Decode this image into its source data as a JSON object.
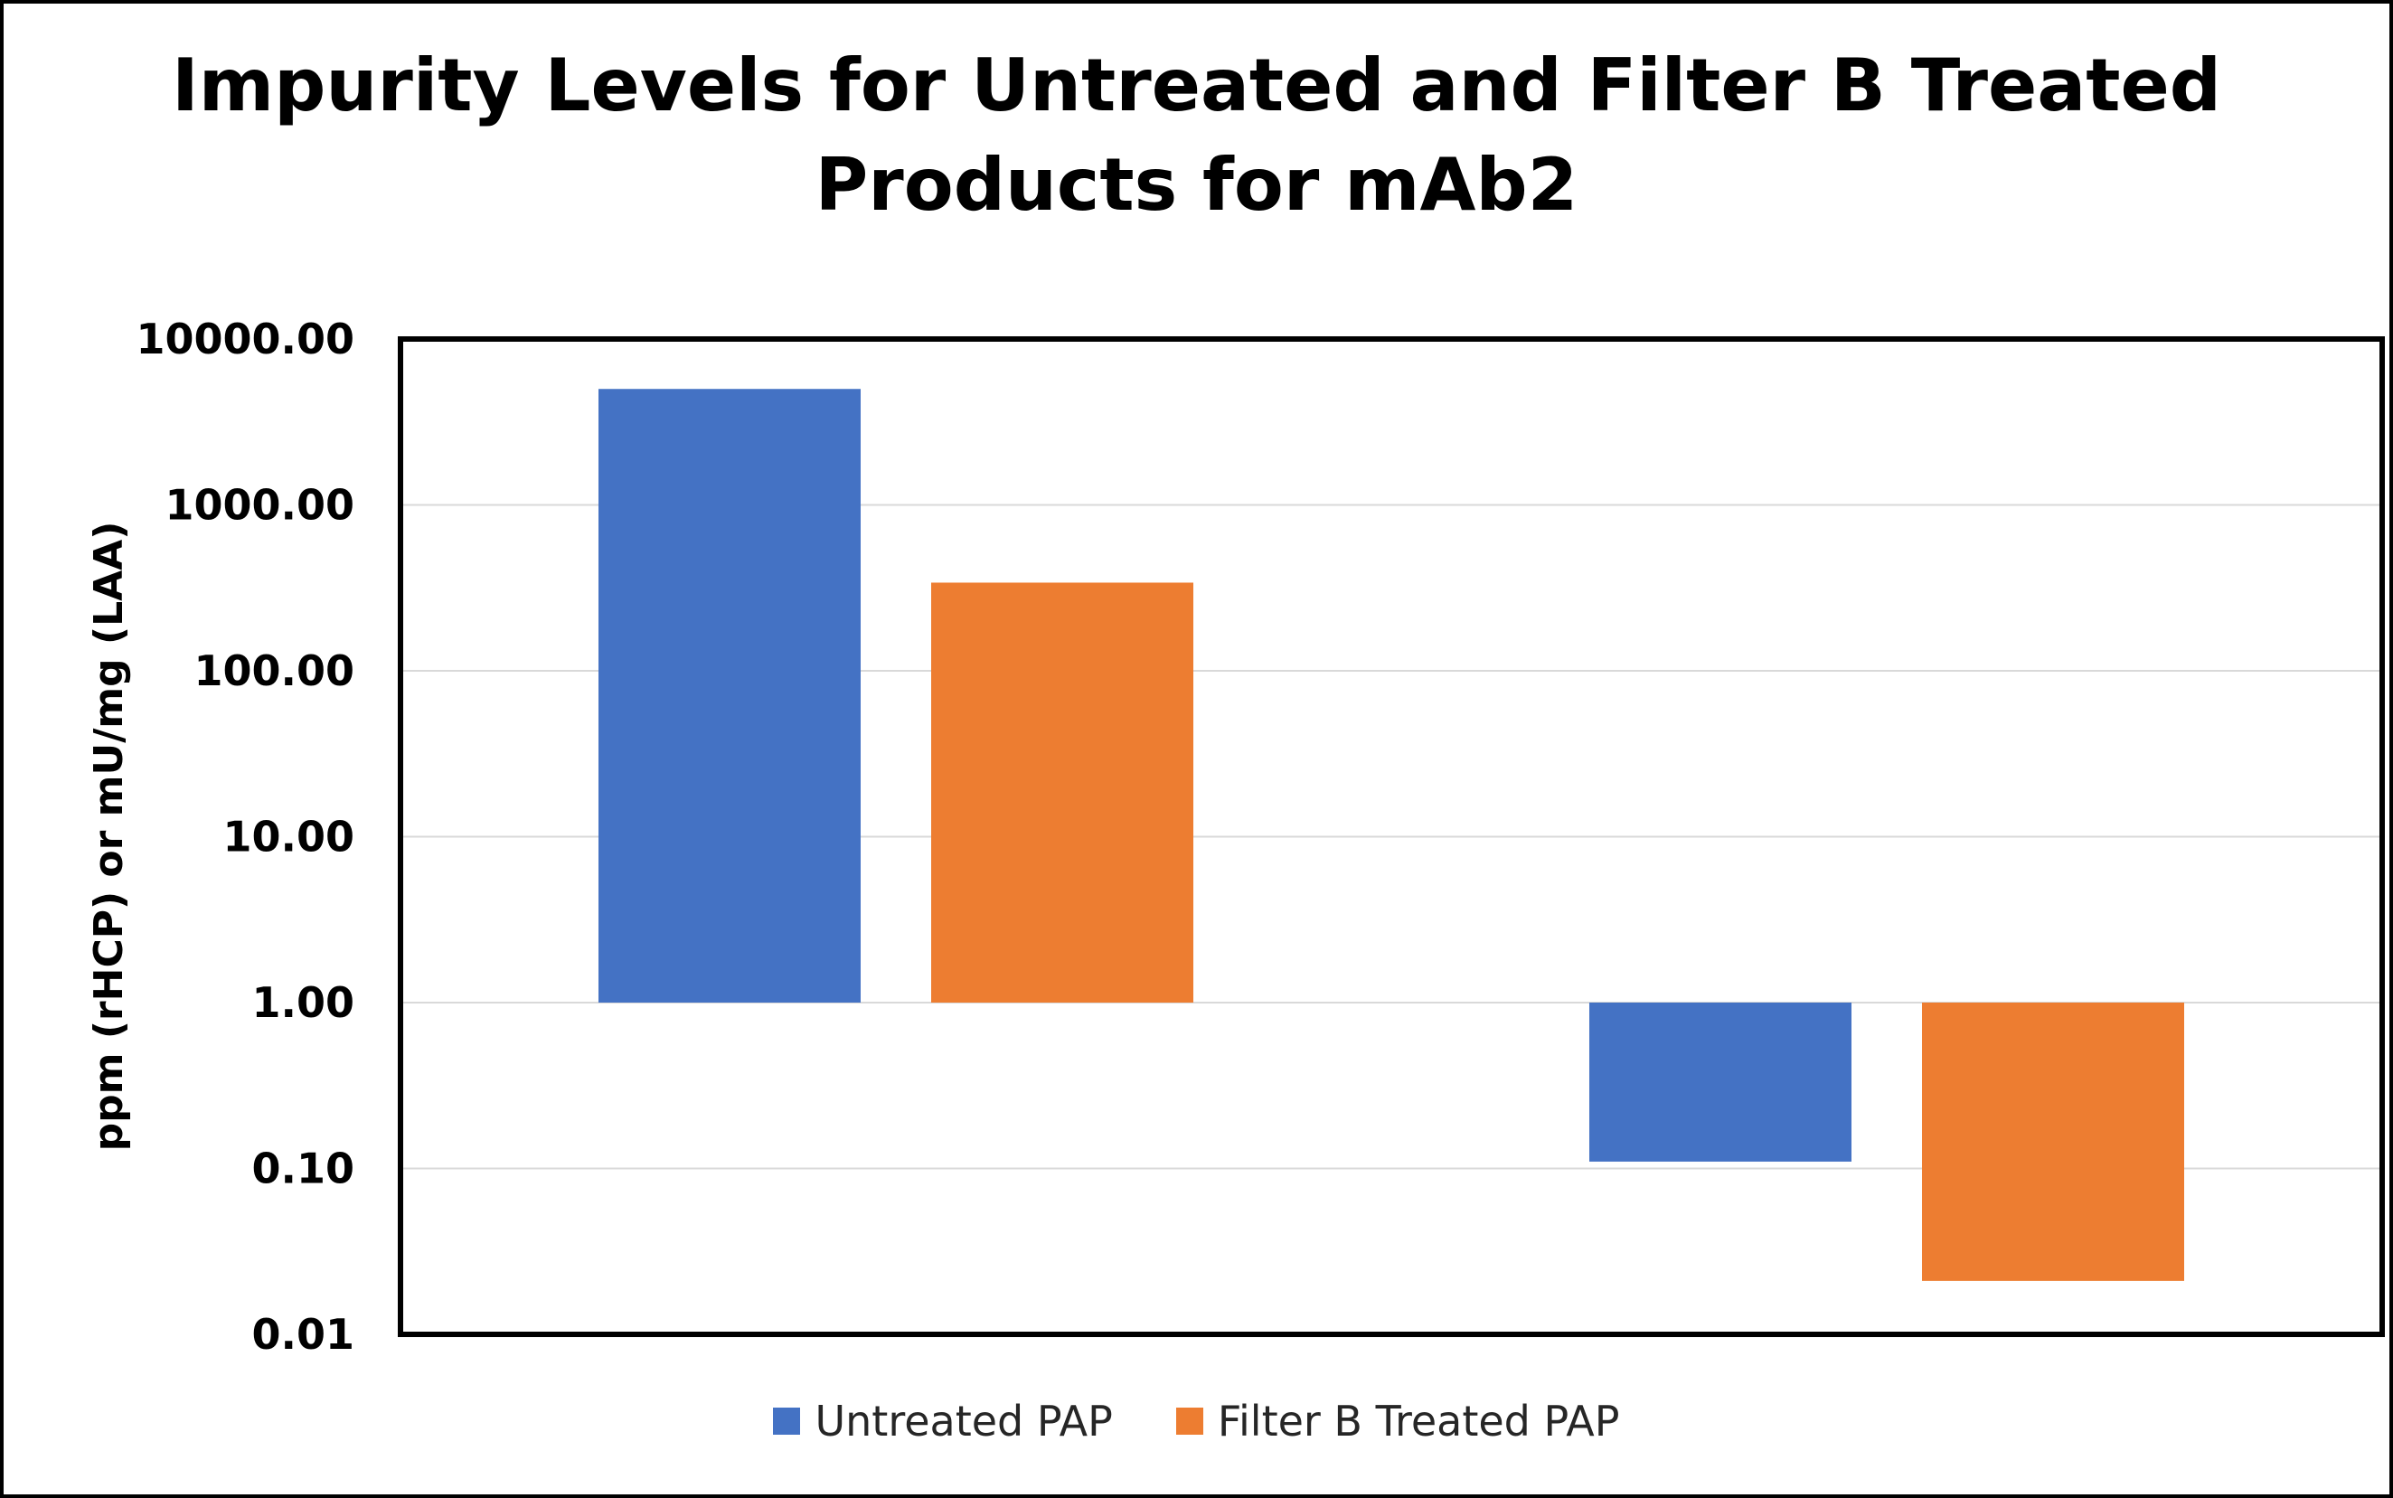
{
  "chart_data": {
    "type": "bar",
    "title_lines": [
      "Impurity Levels for Untreated and Filter B Treated",
      "Products for mAb2"
    ],
    "ylabel": "ppm (rHCP) or mU/mg (LAA)",
    "xlabel": "",
    "yscale": "log",
    "ylim": [
      0.01,
      10000
    ],
    "baseline": 1,
    "yticks": [
      10000,
      1000,
      100,
      10,
      1,
      0.1,
      0.01
    ],
    "ytick_labels": [
      "10000.00",
      "1000.00",
      "100.00",
      "10.00",
      "1.00",
      "0.10",
      "0.01"
    ],
    "grid": true,
    "legend_position": "bottom",
    "categories": [
      "",
      ""
    ],
    "series": [
      {
        "name": "Untreated PAP",
        "color": "#4472C4",
        "values": [
          5000,
          0.11
        ]
      },
      {
        "name": "Filter B Treated PAP",
        "color": "#ED7D31",
        "values": [
          340,
          0.021
        ]
      }
    ]
  }
}
